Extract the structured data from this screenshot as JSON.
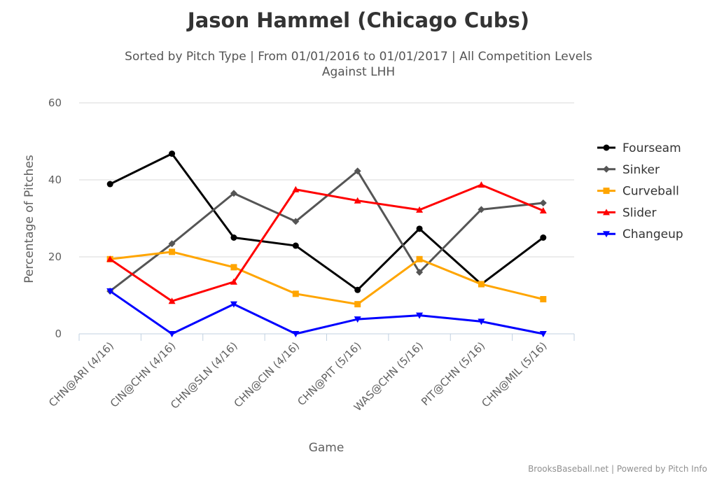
{
  "chart_data": {
    "type": "line",
    "title": "Jason Hammel (Chicago Cubs)",
    "subtitle_line1": "Sorted by Pitch Type | From 01/01/2016 to 01/01/2017 | All Competition Levels",
    "subtitle_line2": "Against LHH",
    "xlabel": "Game",
    "ylabel": "Percentage of Pitches",
    "ylim": [
      0,
      60
    ],
    "yticks": [
      0,
      20,
      40,
      60
    ],
    "grid": true,
    "legend_position": "right",
    "categories": [
      "CHN@ARI (4/16)",
      "CIN@CHN (4/16)",
      "CHN@SLN (4/16)",
      "CHN@CIN (4/16)",
      "CHN@PIT (5/16)",
      "WAS@CHN (5/16)",
      "PIT@CHN (5/16)",
      "CHN@MIL (5/16)"
    ],
    "series": [
      {
        "name": "Fourseam",
        "color": "#000000",
        "marker": "circle",
        "values": [
          38.9,
          46.8,
          25.0,
          22.9,
          11.4,
          27.3,
          12.9,
          25.0
        ]
      },
      {
        "name": "Sinker",
        "color": "#555555",
        "marker": "diamond",
        "values": [
          11.1,
          23.4,
          36.5,
          29.2,
          42.3,
          16.0,
          32.3,
          34.0
        ]
      },
      {
        "name": "Curveball",
        "color": "#ffa500",
        "marker": "square",
        "values": [
          19.4,
          21.3,
          17.3,
          10.4,
          7.7,
          19.4,
          12.9,
          9.0
        ]
      },
      {
        "name": "Slider",
        "color": "#ff0000",
        "marker": "triangle",
        "values": [
          19.4,
          8.5,
          13.5,
          37.5,
          34.6,
          32.2,
          38.7,
          32.0
        ]
      },
      {
        "name": "Changeup",
        "color": "#0000ff",
        "marker": "triangle-down",
        "values": [
          11.1,
          0.0,
          7.7,
          0.0,
          3.8,
          4.8,
          3.2,
          0.0
        ]
      }
    ]
  },
  "credit": "BrooksBaseball.net | Powered by Pitch Info"
}
